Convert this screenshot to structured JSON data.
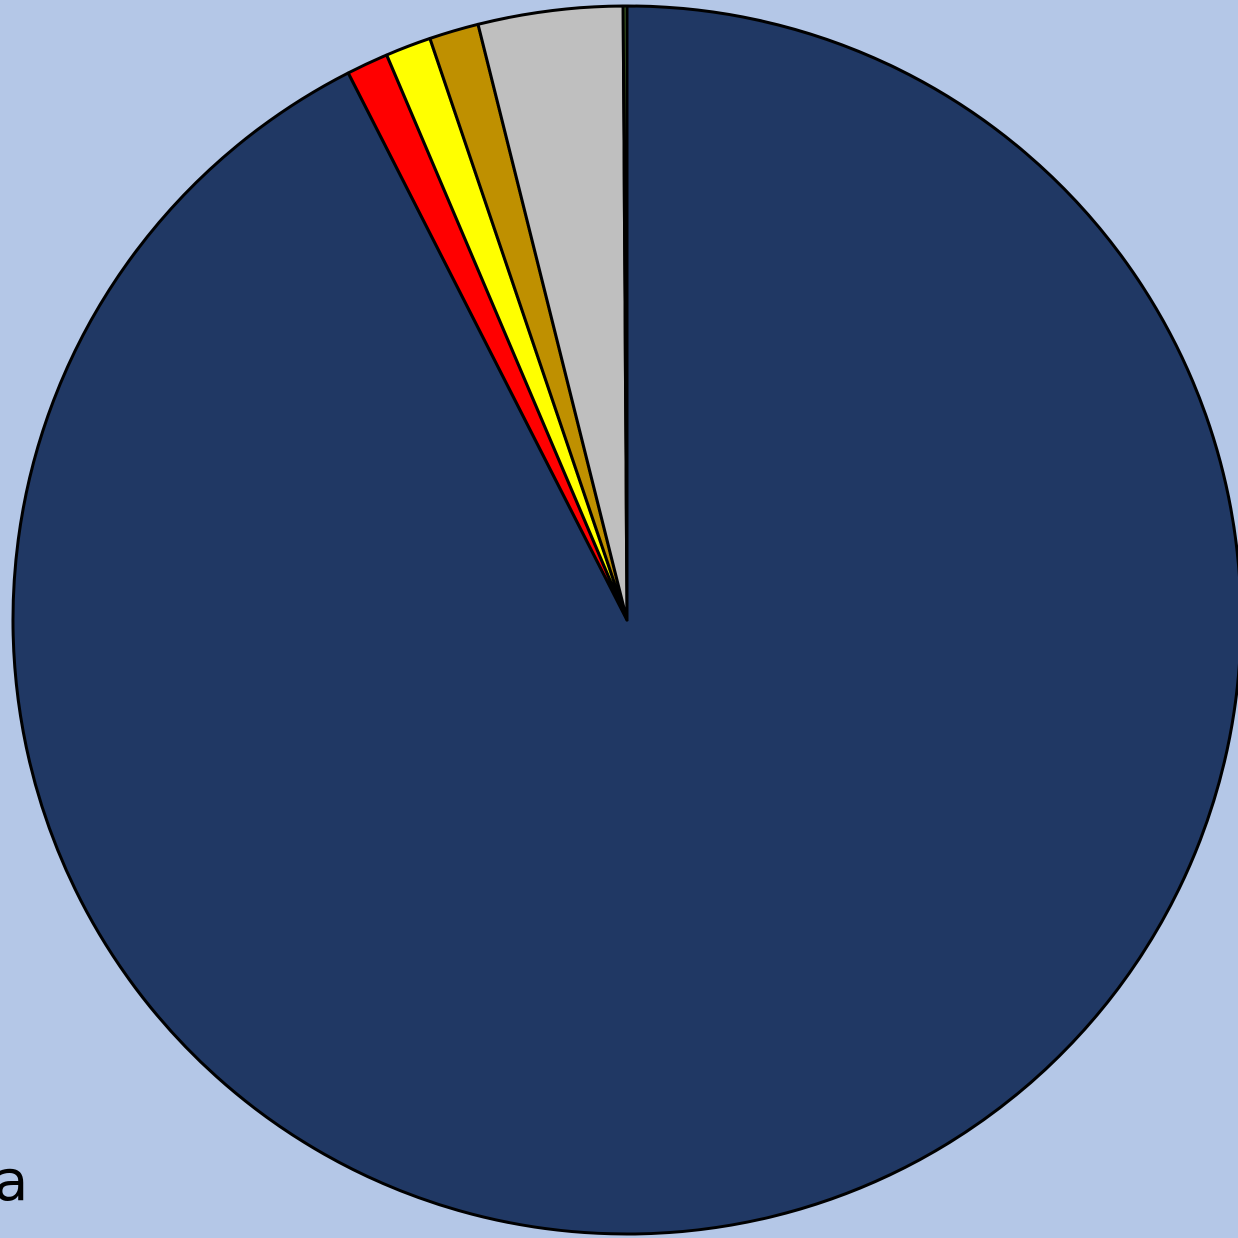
{
  "chart_data": {
    "type": "pie",
    "annotation": "a",
    "values": [
      92.5,
      1.1,
      1.2,
      1.3,
      3.8,
      0.1
    ],
    "colors": [
      "#203864",
      "#ff0000",
      "#ffff00",
      "#bf9000",
      "#bfbfbf",
      "#548235"
    ]
  }
}
